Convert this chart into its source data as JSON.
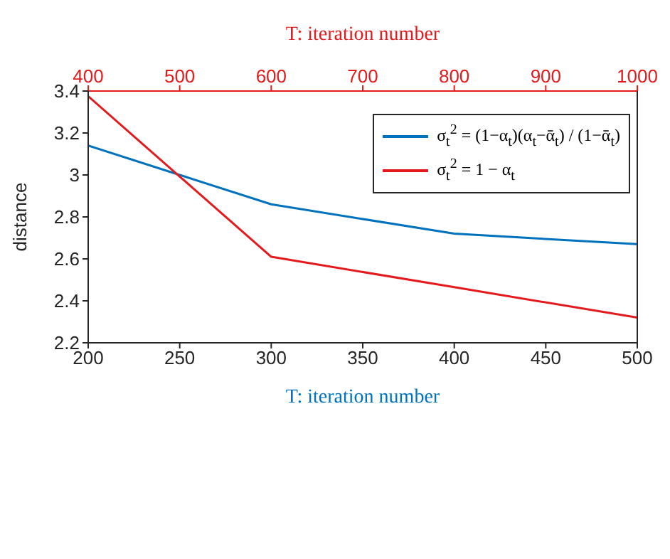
{
  "chart_data": {
    "type": "line",
    "xlabel": "T: iteration number",
    "x2label": "T: iteration number",
    "ylabel": "distance",
    "xlim": [
      200,
      500
    ],
    "xticks": [
      200,
      250,
      300,
      350,
      400,
      450,
      500
    ],
    "x2lim": [
      400,
      1000
    ],
    "x2ticks": [
      400,
      500,
      600,
      700,
      800,
      900,
      1000
    ],
    "ylim": [
      2.2,
      3.4
    ],
    "yticks": [
      2.2,
      2.4,
      2.6,
      2.8,
      3,
      3.2,
      3.4
    ],
    "legend": "top right",
    "marker": "none",
    "line_style": "solid",
    "series": [
      {
        "name": "σ$_{t}$$^{2}$ = (1−α$_{t}$)(α$_{t}$−ᾱ$_{t}$) / (1−ᾱ$_{t}$)",
        "color": "#0072bd",
        "x": [
          200,
          250,
          300,
          400,
          500
        ],
        "values": [
          3.14,
          3.0,
          2.86,
          2.72,
          2.67
        ]
      },
      {
        "name": "σ$_{t}$$^{2}$ = 1 − α$_{t}$",
        "color": "#e41a1c",
        "axis": "x2",
        "x": [
          400,
          600,
          800,
          1000
        ],
        "values": [
          3.375,
          2.61,
          2.465,
          2.32
        ]
      }
    ]
  }
}
